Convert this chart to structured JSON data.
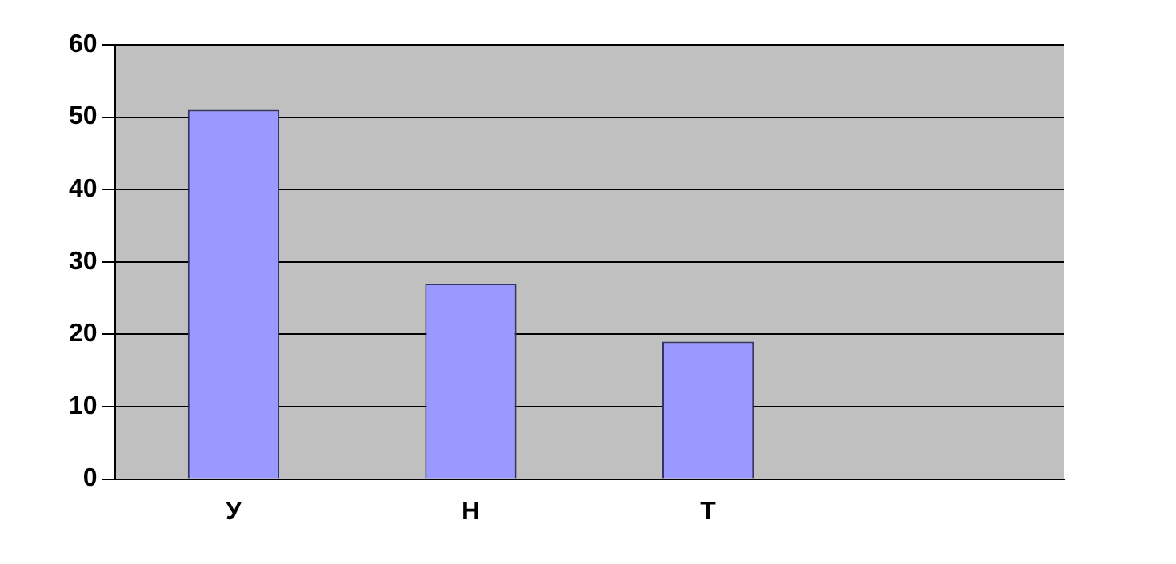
{
  "chart_data": {
    "type": "bar",
    "categories": [
      "У",
      "Н",
      "Т",
      null
    ],
    "values": [
      51,
      27,
      19,
      null
    ],
    "color": "#9999ff",
    "ylim": [
      0,
      60
    ],
    "yticks": [
      0,
      10,
      20,
      30,
      40,
      50,
      60
    ],
    "grid": "y",
    "legend": false
  }
}
